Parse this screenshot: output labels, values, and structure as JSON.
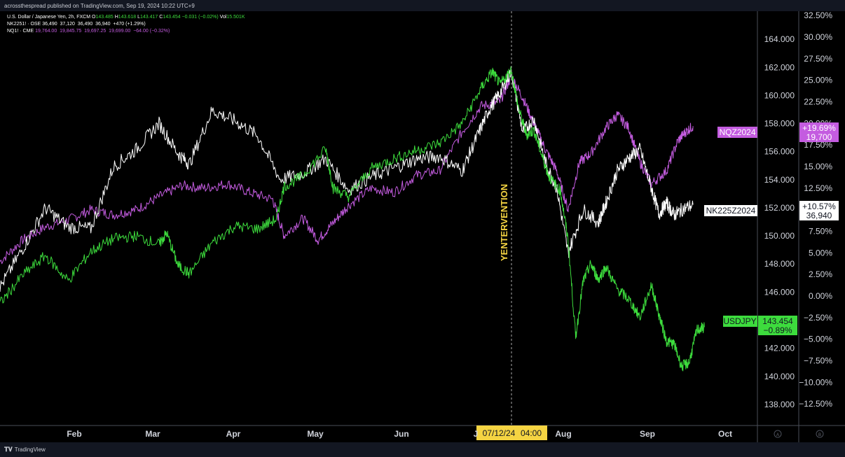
{
  "header": {
    "published": "acrossthespread published on TradingView.com, Sep 19, 2024 10:22 UTC+9"
  },
  "legend": [
    {
      "name": "U.S. Dollar / Japanese Yen, 2h, FXCM",
      "open_label": "O",
      "open": "143.485",
      "high_label": "H",
      "high": "143.618",
      "low_label": "L",
      "low": "143.417",
      "close_label": "C",
      "close": "143.454",
      "change": "−0.031 (−0.02%)",
      "vol_label": "Vol",
      "vol": "15.501K"
    },
    {
      "name": "NK2251! · OSE",
      "values": "36,490  37,120  36,490  36,940  +470 (+1.29%)"
    },
    {
      "name": "NQ1! · CME",
      "values": "19,764.00  19,845.75  19,697.25  19,699.00  −64.00 (−0.32%)"
    }
  ],
  "footer": {
    "brand": "TradingView",
    "logo_icon": "tradingview-logo-icon"
  },
  "colors": {
    "white_series": "#ffffff",
    "green_series": "#3ddc3d",
    "purple_series": "#c45ce0",
    "annotation": "#f5d442",
    "background": "#000000"
  },
  "chart_data": {
    "type": "line",
    "x_axis": {
      "labels": [
        "Feb",
        "Mar",
        "Apr",
        "May",
        "Jun",
        "J",
        "Aug",
        "Sep",
        "Oct"
      ],
      "crosshair_label": {
        "date": "07/12/24",
        "time": "04:00"
      }
    },
    "y_axis_right": {
      "range": [
        136.5,
        166.0
      ],
      "ticks": [
        "164.000",
        "162.000",
        "160.000",
        "158.000",
        "156.000",
        "154.000",
        "152.000",
        "150.000",
        "148.000",
        "146.000",
        "144.000",
        "142.000",
        "140.000",
        "138.000"
      ]
    },
    "y_axis_percent": {
      "range": [
        -15.0,
        33.0
      ],
      "ticks": [
        "32.50%",
        "30.00%",
        "27.50%",
        "25.00%",
        "22.50%",
        "20.00%",
        "17.50%",
        "15.00%",
        "12.50%",
        "10.00%",
        "7.50%",
        "5.00%",
        "2.50%",
        "0.00%",
        "−2.50%",
        "−5.00%",
        "−7.50%",
        "−10.00%",
        "−12.50%"
      ]
    },
    "corner_markers": [
      "A",
      "B"
    ],
    "annotation": {
      "text": "YENTERVENTION"
    },
    "series": [
      {
        "name": "USDJPY",
        "value": "143.454",
        "change": "−0.89%",
        "color": "#3ddc3d",
        "points": [
          [
            0,
            145.2
          ],
          [
            0.03,
            147.2
          ],
          [
            0.06,
            148.6
          ],
          [
            0.09,
            146.8
          ],
          [
            0.12,
            148.9
          ],
          [
            0.15,
            149.8
          ],
          [
            0.18,
            150.0
          ],
          [
            0.21,
            149.4
          ],
          [
            0.22,
            150.2
          ],
          [
            0.235,
            147.9
          ],
          [
            0.25,
            147.3
          ],
          [
            0.28,
            149.5
          ],
          [
            0.31,
            150.7
          ],
          [
            0.34,
            150.5
          ],
          [
            0.365,
            151.2
          ],
          [
            0.375,
            153.5
          ],
          [
            0.4,
            154.3
          ],
          [
            0.43,
            156.2
          ],
          [
            0.44,
            153.4
          ],
          [
            0.46,
            152.8
          ],
          [
            0.49,
            154.8
          ],
          [
            0.52,
            155.5
          ],
          [
            0.55,
            156.1
          ],
          [
            0.58,
            156.6
          ],
          [
            0.61,
            158.0
          ],
          [
            0.635,
            160.5
          ],
          [
            0.65,
            161.7
          ],
          [
            0.66,
            160.8
          ],
          [
            0.675,
            161.8
          ],
          [
            0.685,
            159.0
          ],
          [
            0.695,
            157.2
          ],
          [
            0.705,
            157.5
          ],
          [
            0.715,
            155.8
          ],
          [
            0.725,
            154.2
          ],
          [
            0.74,
            153.2
          ],
          [
            0.75,
            149.7
          ],
          [
            0.76,
            142.8
          ],
          [
            0.77,
            146.8
          ],
          [
            0.78,
            148.0
          ],
          [
            0.79,
            146.9
          ],
          [
            0.8,
            147.8
          ],
          [
            0.815,
            146.2
          ],
          [
            0.83,
            145.5
          ],
          [
            0.845,
            144.2
          ],
          [
            0.86,
            146.5
          ],
          [
            0.87,
            144.4
          ],
          [
            0.88,
            142.5
          ],
          [
            0.89,
            142.3
          ],
          [
            0.9,
            140.7
          ],
          [
            0.91,
            141.0
          ],
          [
            0.92,
            143.3
          ],
          [
            0.93,
            143.5
          ]
        ]
      },
      {
        "name": "NK225Z2024",
        "value": "+10.57%",
        "change": "36,940",
        "color": "#ffffff",
        "points": [
          [
            0,
            1.0
          ],
          [
            0.03,
            5.5
          ],
          [
            0.06,
            10.2
          ],
          [
            0.09,
            8.0
          ],
          [
            0.12,
            7.8
          ],
          [
            0.15,
            15.0
          ],
          [
            0.18,
            17.0
          ],
          [
            0.21,
            20.0
          ],
          [
            0.235,
            16.5
          ],
          [
            0.25,
            15.3
          ],
          [
            0.28,
            21.5
          ],
          [
            0.31,
            20.3
          ],
          [
            0.34,
            18.6
          ],
          [
            0.37,
            13.5
          ],
          [
            0.4,
            14.2
          ],
          [
            0.43,
            15.9
          ],
          [
            0.46,
            12.3
          ],
          [
            0.49,
            13.8
          ],
          [
            0.52,
            14.8
          ],
          [
            0.55,
            15.9
          ],
          [
            0.58,
            16.2
          ],
          [
            0.61,
            14.5
          ],
          [
            0.63,
            18.5
          ],
          [
            0.645,
            21.5
          ],
          [
            0.66,
            23.5
          ],
          [
            0.675,
            26.0
          ],
          [
            0.69,
            19.0
          ],
          [
            0.705,
            20.5
          ],
          [
            0.72,
            15.5
          ],
          [
            0.735,
            12.5
          ],
          [
            0.75,
            5.0
          ],
          [
            0.77,
            10.0
          ],
          [
            0.79,
            8.5
          ],
          [
            0.8,
            10.8
          ],
          [
            0.815,
            14.5
          ],
          [
            0.83,
            16.0
          ],
          [
            0.845,
            17.0
          ],
          [
            0.86,
            12.5
          ],
          [
            0.87,
            9.5
          ],
          [
            0.88,
            10.8
          ],
          [
            0.89,
            9.4
          ],
          [
            0.9,
            10.0
          ],
          [
            0.915,
            10.57
          ]
        ]
      },
      {
        "name": "NQZ2024",
        "value": "+19.69%",
        "change": "19,700",
        "color": "#c45ce0",
        "points": [
          [
            0,
            4.0
          ],
          [
            0.03,
            6.5
          ],
          [
            0.06,
            8.0
          ],
          [
            0.09,
            8.8
          ],
          [
            0.12,
            10.0
          ],
          [
            0.15,
            9.4
          ],
          [
            0.18,
            10.0
          ],
          [
            0.21,
            11.5
          ],
          [
            0.24,
            12.8
          ],
          [
            0.27,
            12.5
          ],
          [
            0.3,
            13.0
          ],
          [
            0.33,
            12.0
          ],
          [
            0.36,
            11.2
          ],
          [
            0.375,
            7.0
          ],
          [
            0.4,
            9.0
          ],
          [
            0.42,
            6.5
          ],
          [
            0.44,
            8.5
          ],
          [
            0.46,
            10.5
          ],
          [
            0.49,
            12.5
          ],
          [
            0.52,
            12.0
          ],
          [
            0.55,
            14.0
          ],
          [
            0.58,
            14.5
          ],
          [
            0.61,
            19.0
          ],
          [
            0.635,
            22.0
          ],
          [
            0.66,
            22.5
          ],
          [
            0.675,
            25.5
          ],
          [
            0.69,
            23.0
          ],
          [
            0.705,
            20.0
          ],
          [
            0.72,
            17.0
          ],
          [
            0.735,
            14.5
          ],
          [
            0.75,
            10.0
          ],
          [
            0.765,
            15.5
          ],
          [
            0.78,
            16.5
          ],
          [
            0.8,
            19.5
          ],
          [
            0.815,
            21.0
          ],
          [
            0.83,
            19.5
          ],
          [
            0.845,
            15.5
          ],
          [
            0.86,
            13.0
          ],
          [
            0.88,
            14.5
          ],
          [
            0.895,
            18.0
          ],
          [
            0.905,
            19.0
          ],
          [
            0.915,
            19.69
          ]
        ]
      }
    ]
  }
}
